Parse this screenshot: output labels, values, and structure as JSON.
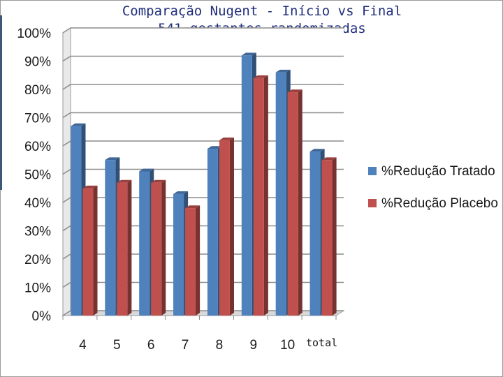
{
  "chart_data": {
    "type": "bar",
    "title": "Comparação Nugent - Início vs Final",
    "subtitle": "541 gestantes randomizadas",
    "categories": [
      "4",
      "5",
      "6",
      "7",
      "8",
      "9",
      "10",
      "total"
    ],
    "series": [
      {
        "name": "%Redução Tratado",
        "color": "#4f81bd",
        "values": [
          67,
          55,
          51,
          43,
          59,
          92,
          86,
          58
        ]
      },
      {
        "name": "%Redução Placebo",
        "color": "#c0504d",
        "values": [
          45,
          47,
          47,
          38,
          62,
          84,
          79,
          55
        ]
      }
    ],
    "ylim": [
      0,
      100
    ],
    "yticks": [
      "0%",
      "10%",
      "20%",
      "30%",
      "40%",
      "50%",
      "60%",
      "70%",
      "80%",
      "90%",
      "100%"
    ],
    "grid": true,
    "bar_style": "3d",
    "legend_position": "right"
  }
}
